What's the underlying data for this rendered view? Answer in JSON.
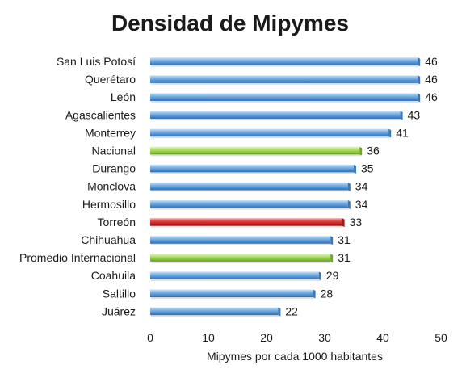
{
  "chart_data": {
    "type": "bar",
    "orientation": "horizontal",
    "title": "Densidad de Mipymes",
    "xlabel": "Mipymes por cada 1000 habitantes",
    "ylabel": "",
    "xlim": [
      0,
      50
    ],
    "xticks": [
      "0",
      "10",
      "20",
      "30",
      "40",
      "50"
    ],
    "grid": false,
    "legend": "none",
    "colors": {
      "default": "#5b9bd5",
      "highlight_green": "#92d050",
      "highlight_red": "#d0202a"
    },
    "bars": [
      {
        "category": "San Luis Potosí",
        "value": 46,
        "label": "46",
        "color": "blue"
      },
      {
        "category": "Querétaro",
        "value": 46,
        "label": "46",
        "color": "blue"
      },
      {
        "category": "León",
        "value": 46,
        "label": "46",
        "color": "blue"
      },
      {
        "category": "Agascalientes",
        "value": 43,
        "label": "43",
        "color": "blue"
      },
      {
        "category": "Monterrey",
        "value": 41,
        "label": "41",
        "color": "blue"
      },
      {
        "category": "Nacional",
        "value": 36,
        "label": "36",
        "color": "green"
      },
      {
        "category": "Durango",
        "value": 35,
        "label": "35",
        "color": "blue"
      },
      {
        "category": "Monclova",
        "value": 34,
        "label": "34",
        "color": "blue"
      },
      {
        "category": "Hermosillo",
        "value": 34,
        "label": "34",
        "color": "blue"
      },
      {
        "category": "Torreón",
        "value": 33,
        "label": "33",
        "color": "red"
      },
      {
        "category": "Chihuahua",
        "value": 31,
        "label": "31",
        "color": "blue"
      },
      {
        "category": "Promedio Internacional",
        "value": 31,
        "label": "31",
        "color": "green"
      },
      {
        "category": "Coahuila",
        "value": 29,
        "label": "29",
        "color": "blue"
      },
      {
        "category": "Saltillo",
        "value": 28,
        "label": "28",
        "color": "blue"
      },
      {
        "category": "Juárez",
        "value": 22,
        "label": "22",
        "color": "blue"
      }
    ]
  }
}
